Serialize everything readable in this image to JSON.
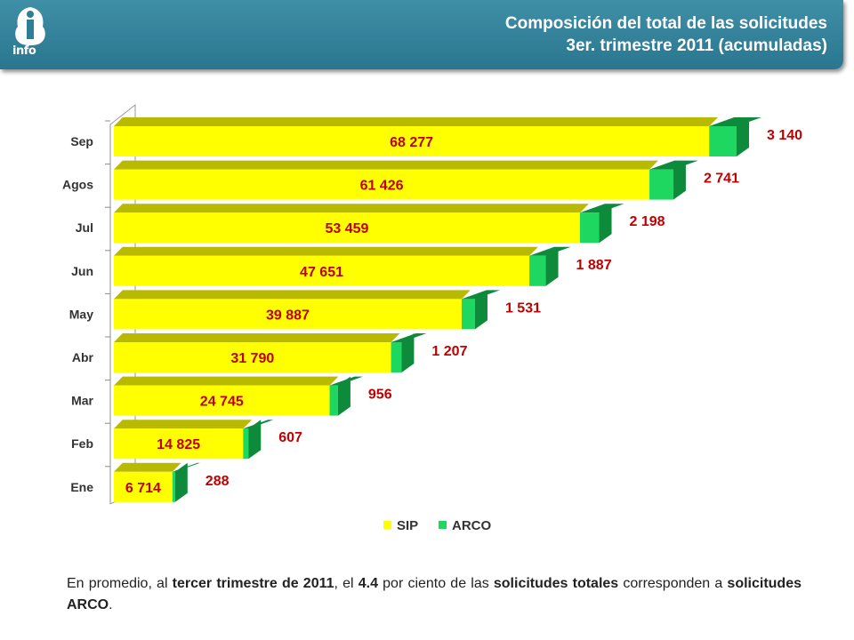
{
  "header": {
    "title_line1": "Composición del total de las solicitudes",
    "title_line2": "3er. trimestre 2011 (acumuladas)",
    "logo_text": "info"
  },
  "colors": {
    "header_bg": "#2f7e97",
    "sip": "#ffff00",
    "sip_edge": "#b9b900",
    "arco": "#1ed760",
    "arco_edge": "#0d8a3a",
    "value_label": "#c00000"
  },
  "chart_data": {
    "type": "bar",
    "orientation": "horizontal",
    "stacked": true,
    "categories": [
      "Sep",
      "Agos",
      "Jul",
      "Jun",
      "May",
      "Abr",
      "Mar",
      "Feb",
      "Ene"
    ],
    "series": [
      {
        "name": "SIP",
        "values": [
          68277,
          61426,
          53459,
          47651,
          39887,
          31790,
          24745,
          14825,
          6714
        ],
        "labels": [
          "68 277",
          "61 426",
          "53 459",
          "47 651",
          "39 887",
          "31 790",
          "24 745",
          "14 825",
          "6 714"
        ]
      },
      {
        "name": "ARCO",
        "values": [
          3140,
          2741,
          2198,
          1887,
          1531,
          1207,
          956,
          607,
          288
        ],
        "labels": [
          "3 140",
          "2 741",
          "2 198",
          "1 887",
          "1 531",
          "1 207",
          "956",
          "607",
          "288"
        ]
      }
    ],
    "xlim": [
      0,
      71417
    ],
    "legend_position": "bottom",
    "grid": false
  },
  "footer": {
    "p1": "En promedio, al ",
    "b1": "tercer trimestre de 2011",
    "p2": ", el ",
    "b2": "4.4",
    "p3": " por ciento de las ",
    "b3": "solicitudes totales",
    "p4": " corresponden a ",
    "b4": "solicitudes ARCO",
    "p5": "."
  }
}
